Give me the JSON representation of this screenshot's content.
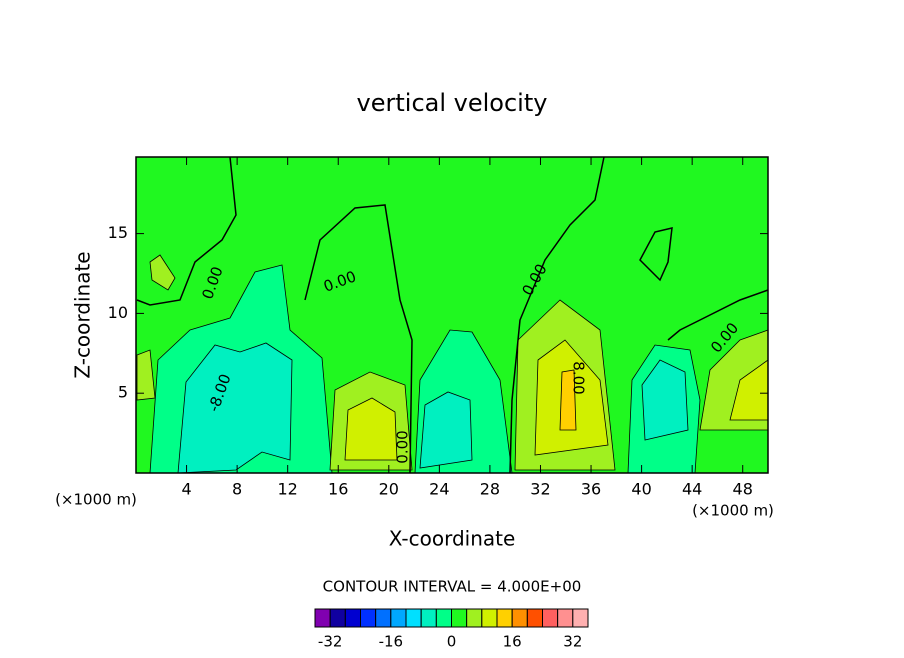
{
  "chart_data": {
    "type": "contour",
    "title": "vertical velocity",
    "x_label": "X-coordinate",
    "y_label": "Z-coordinate",
    "x_unit": "(×1000 m)",
    "xlim": [
      0,
      50
    ],
    "ylim": [
      0,
      19.8
    ],
    "xticks": [
      4,
      8,
      12,
      16,
      20,
      24,
      28,
      32,
      36,
      40,
      44,
      48
    ],
    "yticks": [
      5,
      10,
      15
    ],
    "contour_labels": [
      "0.00",
      "0.00",
      "0.00",
      "0.00",
      "-8.00",
      "8.00",
      "0.00"
    ],
    "contour_interval_label": "CONTOUR INTERVAL = 4.000E+00",
    "colorbar": {
      "levels": [
        -36,
        -32,
        -28,
        -24,
        -20,
        -16,
        -12,
        -8,
        -4,
        0,
        4,
        8,
        12,
        16,
        20,
        24,
        28,
        32,
        36
      ],
      "colors": [
        "#8000b0",
        "#1000a0",
        "#0000d0",
        "#0030ff",
        "#0070ff",
        "#00a8ff",
        "#00e0ff",
        "#00f0c0",
        "#00ff88",
        "#20f820",
        "#a0f020",
        "#d0f000",
        "#ffd000",
        "#ff9000",
        "#ff5000",
        "#ff6060",
        "#ff9090",
        "#ffb0b0"
      ],
      "ticks": [
        -32,
        -16,
        0,
        16,
        32
      ]
    }
  }
}
